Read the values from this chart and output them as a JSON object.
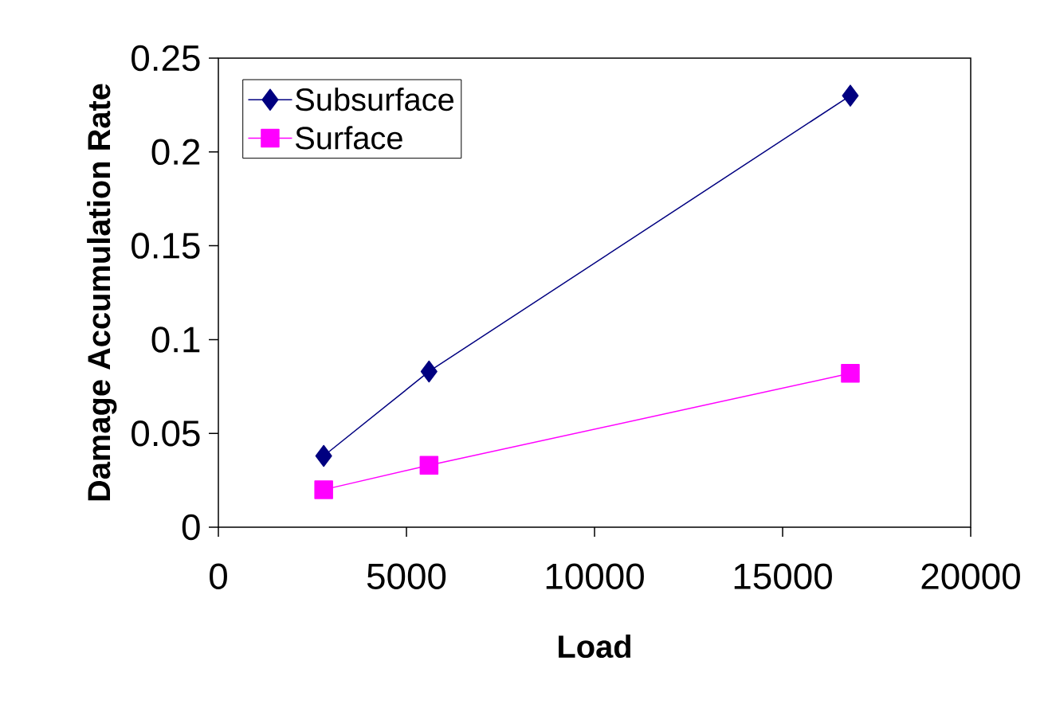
{
  "chart_data": {
    "type": "line",
    "xlabel": "Load",
    "ylabel": "Damage Accumulation Rate",
    "xlim": [
      0,
      20000
    ],
    "xticks": [
      0,
      5000,
      10000,
      15000,
      20000
    ],
    "ylim": [
      0,
      0.25
    ],
    "yticks": [
      0,
      0.05,
      0.1,
      0.15,
      0.2,
      0.25
    ],
    "grid": false,
    "legend": "top left",
    "line_style": "solid",
    "series": [
      {
        "name": "Subsurface",
        "color": "#000080",
        "marker": "diamond",
        "x": [
          2800,
          5600,
          16800
        ],
        "values": [
          0.038,
          0.083,
          0.23
        ]
      },
      {
        "name": "Surface",
        "color": "#ff00ff",
        "marker": "square",
        "x": [
          2800,
          5600,
          16800
        ],
        "values": [
          0.02,
          0.033,
          0.082
        ]
      }
    ]
  }
}
